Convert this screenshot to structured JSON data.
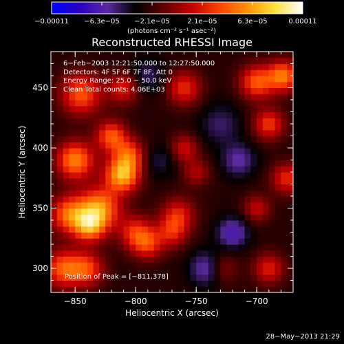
{
  "colorbar": {
    "tick_labels": [
      "−0.00011",
      "−6.3e−05",
      "−2.1e−05",
      "2.1e−05",
      "6.3e−05",
      "0.00011"
    ],
    "units": "(photons cm⁻² s⁻¹ asec⁻²)",
    "colormap": [
      "#0000ff",
      "#2a00c0",
      "#5a2aa0",
      "#000000",
      "#600000",
      "#c00000",
      "#ff4000",
      "#ff9000",
      "#ffe040",
      "#ffffff"
    ]
  },
  "title": "Reconstructed RHESSI Image",
  "info": {
    "time_range": "6−Feb−2003 12:21:50.000 to 12:27:50.000",
    "detectors": "Detectors: 4F 5F 6F 7F 8F, Att 0",
    "energy": "Energy Range: 25.0 − 50.0 keV",
    "algorithm": "Clean    Total counts: 4.06E+03"
  },
  "peak_label": "Position of Peak = [−811,378]",
  "timestamp": "28−May−2013 21:29",
  "chart_data": {
    "type": "heatmap",
    "title": "Reconstructed RHESSI Image",
    "xlabel": "Heliocentric X (arcsec)",
    "ylabel": "Heliocentric Y (arcsec)",
    "xlim": [
      -870,
      -670
    ],
    "ylim": [
      280,
      480
    ],
    "xticks": [
      -850,
      -800,
      -750,
      -700
    ],
    "xtick_labels": [
      "−850",
      "−800",
      "−750",
      "−700"
    ],
    "yticks": [
      300,
      350,
      400,
      450
    ],
    "ytick_labels": [
      "300",
      "350",
      "400",
      "450"
    ],
    "value_range": [
      -0.00011,
      0.00011
    ],
    "peak": [
      -811,
      378
    ],
    "blobs": [
      {
        "x": -811,
        "y": 378,
        "amp": 1.0,
        "s": 10
      },
      {
        "x": -830,
        "y": 350,
        "amp": 0.9,
        "s": 12
      },
      {
        "x": -838,
        "y": 335,
        "amp": 0.75,
        "s": 9
      },
      {
        "x": -820,
        "y": 410,
        "amp": 0.7,
        "s": 9
      },
      {
        "x": -805,
        "y": 395,
        "amp": 0.6,
        "s": 9
      },
      {
        "x": -850,
        "y": 390,
        "amp": 0.85,
        "s": 11
      },
      {
        "x": -855,
        "y": 345,
        "amp": 0.75,
        "s": 11
      },
      {
        "x": -860,
        "y": 300,
        "amp": 0.7,
        "s": 11
      },
      {
        "x": -840,
        "y": 300,
        "amp": 0.6,
        "s": 10
      },
      {
        "x": -800,
        "y": 330,
        "amp": 0.55,
        "s": 10
      },
      {
        "x": -790,
        "y": 320,
        "amp": 0.5,
        "s": 9
      },
      {
        "x": -845,
        "y": 445,
        "amp": 0.7,
        "s": 12
      },
      {
        "x": -810,
        "y": 450,
        "amp": 0.5,
        "s": 9
      },
      {
        "x": -760,
        "y": 450,
        "amp": 0.55,
        "s": 10
      },
      {
        "x": -760,
        "y": 400,
        "amp": 0.45,
        "s": 8
      },
      {
        "x": -765,
        "y": 345,
        "amp": 0.5,
        "s": 10
      },
      {
        "x": -770,
        "y": 330,
        "amp": 0.45,
        "s": 9
      },
      {
        "x": -750,
        "y": 380,
        "amp": 0.35,
        "s": 8
      },
      {
        "x": -700,
        "y": 455,
        "amp": 0.7,
        "s": 10
      },
      {
        "x": -690,
        "y": 420,
        "amp": 0.6,
        "s": 9
      },
      {
        "x": -678,
        "y": 460,
        "amp": 0.8,
        "s": 9
      },
      {
        "x": -675,
        "y": 375,
        "amp": 0.55,
        "s": 9
      },
      {
        "x": -700,
        "y": 350,
        "amp": 0.4,
        "s": 8
      },
      {
        "x": -690,
        "y": 300,
        "amp": 0.5,
        "s": 9
      },
      {
        "x": -730,
        "y": 300,
        "amp": 0.4,
        "s": 9
      },
      {
        "x": -740,
        "y": 300,
        "amp": -0.5,
        "s": 10
      },
      {
        "x": -720,
        "y": 330,
        "amp": -0.45,
        "s": 9
      },
      {
        "x": -715,
        "y": 390,
        "amp": -0.35,
        "s": 10
      },
      {
        "x": -730,
        "y": 420,
        "amp": -0.25,
        "s": 12
      },
      {
        "x": -780,
        "y": 390,
        "amp": -0.2,
        "s": 10
      },
      {
        "x": -790,
        "y": 460,
        "amp": -0.25,
        "s": 10
      }
    ]
  }
}
